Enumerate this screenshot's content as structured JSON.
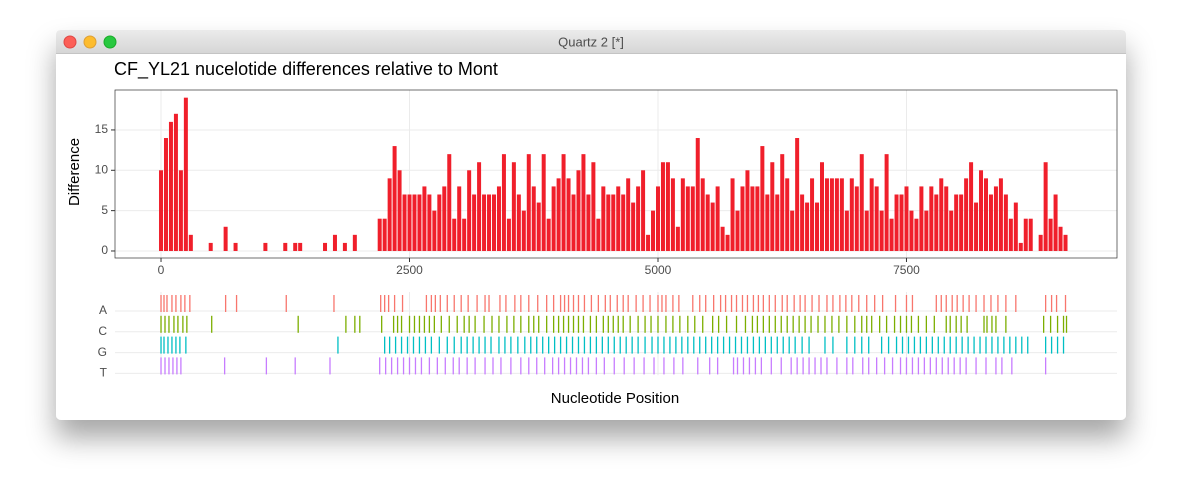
{
  "window": {
    "title": "Quartz 2 [*]"
  },
  "chart_data": [
    {
      "type": "bar",
      "title": "CF_YL21 nucelotide differences relative to Mont",
      "ylabel": "Difference",
      "color": "#f01f2b",
      "grid": true,
      "x": [
        0,
        50,
        100,
        150,
        200,
        250,
        300,
        500,
        650,
        750,
        1050,
        1250,
        1350,
        1400,
        1650,
        1750,
        1850,
        1950,
        2200,
        2250,
        2300,
        2350,
        2400,
        2450,
        2500,
        2550,
        2600,
        2650,
        2700,
        2750,
        2800,
        2850,
        2900,
        2950,
        3000,
        3050,
        3100,
        3150,
        3200,
        3250,
        3300,
        3350,
        3400,
        3450,
        3500,
        3550,
        3600,
        3650,
        3700,
        3750,
        3800,
        3850,
        3900,
        3950,
        4000,
        4050,
        4100,
        4150,
        4200,
        4250,
        4300,
        4350,
        4400,
        4450,
        4500,
        4550,
        4600,
        4650,
        4700,
        4750,
        4800,
        4850,
        4900,
        4950,
        5000,
        5050,
        5100,
        5150,
        5200,
        5250,
        5300,
        5350,
        5400,
        5450,
        5500,
        5550,
        5600,
        5650,
        5700,
        5750,
        5800,
        5850,
        5900,
        5950,
        6000,
        6050,
        6100,
        6150,
        6200,
        6250,
        6300,
        6350,
        6400,
        6450,
        6500,
        6550,
        6600,
        6650,
        6700,
        6750,
        6800,
        6850,
        6900,
        6950,
        7000,
        7050,
        7100,
        7150,
        7200,
        7250,
        7300,
        7350,
        7400,
        7450,
        7500,
        7550,
        7600,
        7650,
        7700,
        7750,
        7800,
        7850,
        7900,
        7950,
        8000,
        8050,
        8100,
        8150,
        8200,
        8250,
        8300,
        8350,
        8400,
        8450,
        8500,
        8550,
        8600,
        8650,
        8700,
        8750,
        8850,
        8900,
        8950,
        9000,
        9050,
        9100
      ],
      "values": [
        10,
        14,
        16,
        17,
        10,
        19,
        2,
        1,
        3,
        1,
        1,
        1,
        1,
        1,
        1,
        2,
        1,
        2,
        4,
        4,
        9,
        13,
        10,
        7,
        7,
        7,
        7,
        8,
        7,
        5,
        7,
        8,
        12,
        4,
        8,
        4,
        10,
        7,
        11,
        7,
        7,
        7,
        8,
        12,
        4,
        11,
        7,
        5,
        12,
        8,
        6,
        12,
        4,
        8,
        9,
        12,
        9,
        7,
        10,
        12,
        7,
        11,
        4,
        8,
        7,
        7,
        8,
        7,
        9,
        6,
        8,
        10,
        2,
        5,
        8,
        11,
        11,
        9,
        3,
        9,
        8,
        8,
        14,
        9,
        7,
        6,
        8,
        3,
        2,
        9,
        5,
        8,
        10,
        8,
        8,
        13,
        7,
        11,
        7,
        12,
        9,
        5,
        14,
        7,
        6,
        9,
        6,
        11,
        9,
        9,
        9,
        9,
        5,
        9,
        8,
        12,
        5,
        9,
        8,
        5,
        12,
        4,
        7,
        7,
        8,
        5,
        4,
        8,
        5,
        8,
        7,
        9,
        8,
        5,
        7,
        7,
        9,
        11,
        6,
        10,
        9,
        7,
        8,
        9,
        7,
        4,
        6,
        1,
        4,
        4,
        2,
        11,
        4,
        7,
        3,
        2
      ],
      "xlim": [
        -463,
        9618
      ],
      "xticks": [
        0,
        2500,
        5000,
        7500
      ],
      "ylim": [
        -0.87,
        19.95
      ],
      "yticks": [
        0,
        5,
        10,
        15
      ]
    },
    {
      "type": "strip",
      "xlabel": "Nucleotide Position",
      "xlim": [
        -463,
        9618
      ],
      "xticks": [
        0,
        2500,
        5000,
        7500
      ],
      "grid": true,
      "series": [
        {
          "name": "A",
          "color": "#F8766D",
          "x": [
            0,
            30,
            60,
            110,
            150,
            200,
            240,
            290,
            650,
            760,
            1260,
            1740,
            2210,
            2250,
            2290,
            2350,
            2430,
            2670,
            2720,
            2760,
            2810,
            2880,
            2950,
            3020,
            3090,
            3180,
            3260,
            3300,
            3410,
            3470,
            3560,
            3620,
            3700,
            3790,
            3880,
            3950,
            4020,
            4060,
            4100,
            4150,
            4200,
            4260,
            4330,
            4400,
            4470,
            4520,
            4590,
            4650,
            4700,
            4780,
            4850,
            4920,
            5000,
            5040,
            5080,
            5150,
            5210,
            5350,
            5420,
            5480,
            5560,
            5630,
            5680,
            5740,
            5790,
            5850,
            5900,
            5960,
            6010,
            6060,
            6120,
            6180,
            6250,
            6300,
            6370,
            6430,
            6480,
            6550,
            6620,
            6700,
            6760,
            6830,
            6890,
            6950,
            7020,
            7100,
            7180,
            7260,
            7390,
            7500,
            7560,
            7800,
            7850,
            7900,
            7960,
            8010,
            8070,
            8130,
            8200,
            8280,
            8350,
            8420,
            8500,
            8600,
            8900,
            8960,
            9010,
            9100
          ]
        },
        {
          "name": "C",
          "color": "#7CAE00",
          "x": [
            0,
            40,
            80,
            130,
            170,
            220,
            260,
            510,
            1380,
            1860,
            1950,
            2000,
            2220,
            2340,
            2380,
            2420,
            2500,
            2550,
            2600,
            2650,
            2700,
            2750,
            2820,
            2900,
            2980,
            3050,
            3100,
            3160,
            3250,
            3330,
            3400,
            3480,
            3550,
            3620,
            3700,
            3750,
            3800,
            3880,
            3950,
            4000,
            4050,
            4100,
            4150,
            4200,
            4250,
            4320,
            4380,
            4450,
            4500,
            4550,
            4600,
            4650,
            4720,
            4800,
            4870,
            4930,
            5000,
            5080,
            5150,
            5220,
            5300,
            5370,
            5450,
            5550,
            5610,
            5690,
            5790,
            5880,
            5950,
            6000,
            6060,
            6120,
            6180,
            6240,
            6300,
            6360,
            6420,
            6480,
            6540,
            6610,
            6680,
            6750,
            6820,
            6900,
            6980,
            7050,
            7100,
            7150,
            7230,
            7300,
            7380,
            7440,
            7500,
            7550,
            7620,
            7700,
            7780,
            7900,
            7940,
            8000,
            8050,
            8110,
            8280,
            8310,
            8360,
            8400,
            8500,
            8880,
            8950,
            9020,
            9080,
            9110
          ]
        },
        {
          "name": "G",
          "color": "#00BFC4",
          "x": [
            0,
            30,
            70,
            110,
            150,
            190,
            250,
            1780,
            2250,
            2300,
            2360,
            2420,
            2480,
            2540,
            2600,
            2660,
            2720,
            2800,
            2880,
            2950,
            3020,
            3080,
            3140,
            3200,
            3260,
            3320,
            3400,
            3460,
            3520,
            3590,
            3660,
            3720,
            3780,
            3840,
            3900,
            3960,
            4020,
            4080,
            4140,
            4200,
            4260,
            4320,
            4380,
            4440,
            4500,
            4560,
            4620,
            4680,
            4740,
            4800,
            4870,
            4940,
            5000,
            5060,
            5120,
            5180,
            5240,
            5300,
            5360,
            5420,
            5480,
            5540,
            5600,
            5660,
            5720,
            5780,
            5840,
            5900,
            5960,
            6020,
            6080,
            6140,
            6200,
            6260,
            6320,
            6380,
            6450,
            6520,
            6680,
            6760,
            6900,
            6980,
            7050,
            7120,
            7250,
            7320,
            7400,
            7460,
            7520,
            7580,
            7640,
            7700,
            7760,
            7820,
            7880,
            7940,
            8000,
            8060,
            8120,
            8180,
            8240,
            8300,
            8360,
            8420,
            8480,
            8540,
            8600,
            8660,
            8720,
            8900,
            8960,
            9020,
            9080
          ]
        },
        {
          "name": "T",
          "color": "#C77CFF",
          "x": [
            0,
            40,
            80,
            120,
            160,
            200,
            640,
            1060,
            1350,
            1700,
            2200,
            2260,
            2320,
            2380,
            2440,
            2500,
            2560,
            2620,
            2700,
            2780,
            2860,
            2940,
            3000,
            3080,
            3160,
            3260,
            3340,
            3420,
            3520,
            3620,
            3700,
            3780,
            3860,
            3940,
            4000,
            4060,
            4120,
            4180,
            4240,
            4300,
            4380,
            4460,
            4560,
            4660,
            4760,
            4860,
            4960,
            5060,
            5160,
            5250,
            5400,
            5520,
            5600,
            5760,
            5800,
            5860,
            5920,
            5980,
            6040,
            6140,
            6240,
            6340,
            6400,
            6460,
            6520,
            6580,
            6640,
            6700,
            6800,
            6900,
            6960,
            7060,
            7120,
            7200,
            7280,
            7360,
            7440,
            7500,
            7560,
            7620,
            7680,
            7740,
            7800,
            7860,
            7920,
            7980,
            8040,
            8100,
            8200,
            8300,
            8400,
            8460,
            8560,
            8900
          ]
        }
      ]
    }
  ]
}
